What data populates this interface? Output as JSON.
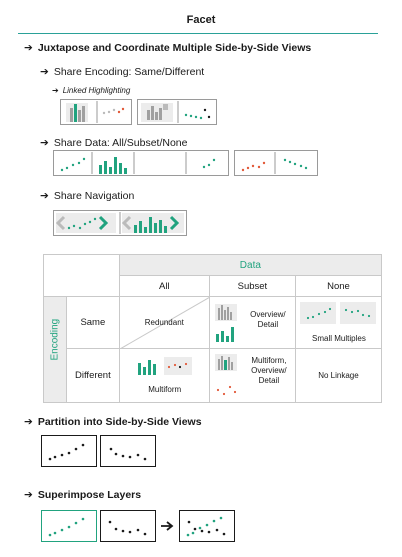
{
  "title": "Facet",
  "sections": {
    "juxtapose": {
      "heading": "Juxtapose and Coordinate Multiple Side-by-Side Views",
      "share_encoding": "Share Encoding: Same/Different",
      "linked_highlighting": "Linked Highlighting",
      "share_data": "Share Data: All/Subset/None",
      "share_navigation": "Share Navigation"
    },
    "partition": {
      "heading": "Partition into Side-by-Side Views"
    },
    "superimpose": {
      "heading": "Superimpose Layers"
    }
  },
  "table": {
    "data_label": "Data",
    "encoding_label": "Encoding",
    "columns": [
      "All",
      "Subset",
      "None"
    ],
    "rows": [
      "Same",
      "Different"
    ],
    "cells": {
      "same_all": "Redundant",
      "same_subset": "Overview/ Detail",
      "same_none": "Small Multiples",
      "different_all": "Multiform",
      "different_subset": "Multiform, Overview/ Detail",
      "different_none": "No Linkage"
    }
  },
  "colors": {
    "accent_teal": "#21a37f",
    "highlight_red": "#e25a3a",
    "dot_black": "#1a1a1a",
    "bar_gray": "#a0a0a0",
    "panel_gray": "#ececec"
  },
  "icons": {
    "bullet": "circled-arrow-icon",
    "sub_bullet": "arrow-icon",
    "nav_left": "chevron-left-icon",
    "nav_right": "chevron-right-icon"
  }
}
